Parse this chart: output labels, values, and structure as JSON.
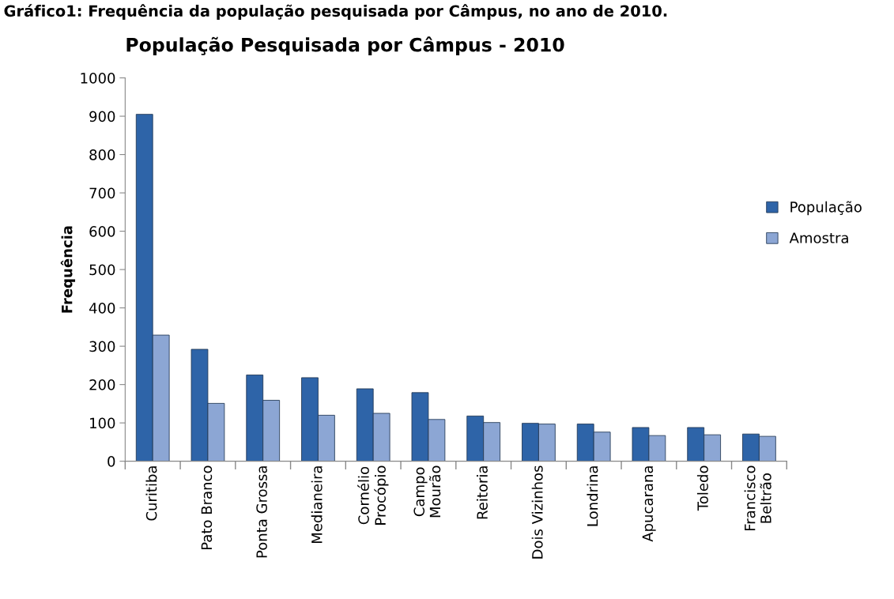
{
  "chart_data": {
    "type": "bar",
    "title": "População Pesquisada por Câmpus - 2010",
    "ylabel": "Frequência",
    "annotations": [
      "Gráfico1: Frequência da população pesquisada por Câmpus, no ano de 2010."
    ],
    "categories": [
      "Curitiba",
      "Pato Branco",
      "Ponta Grossa",
      "Medianeira",
      "Cornélio\nProcópio",
      "Campo\nMourão",
      "Reitoria",
      "Dois Vizinhos",
      "Londrina",
      "Apucarana",
      "Toledo",
      "Francisco\nBeltrão"
    ],
    "series": [
      {
        "name": "População",
        "color": "#2e64a8",
        "values": [
          905,
          292,
          225,
          218,
          189,
          179,
          118,
          99,
          97,
          88,
          88,
          71
        ]
      },
      {
        "name": "Amostra",
        "color": "#8ca6d4",
        "values": [
          329,
          151,
          159,
          120,
          125,
          109,
          101,
          97,
          76,
          67,
          69,
          65
        ]
      }
    ],
    "ylim": [
      0,
      1000
    ],
    "yticks": [
      0,
      100,
      200,
      300,
      400,
      500,
      600,
      700,
      800,
      900,
      1000
    ],
    "grid": false,
    "legend": "right"
  }
}
